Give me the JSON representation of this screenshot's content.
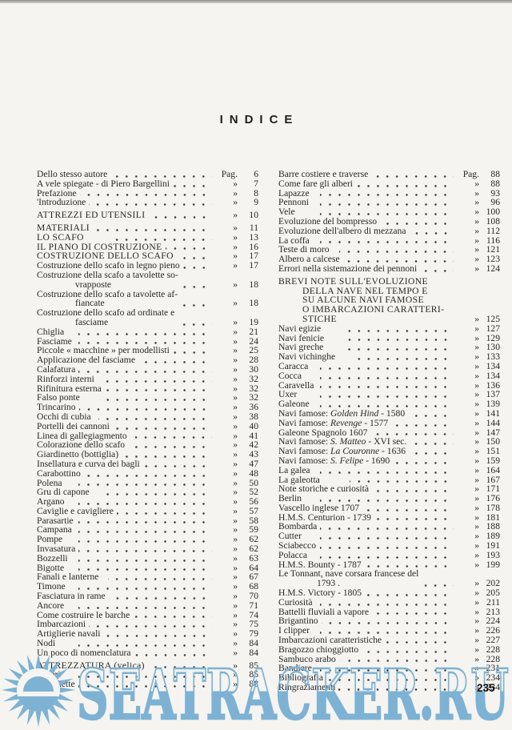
{
  "page": {
    "title": "INDICE",
    "page_number": "235",
    "watermark": {
      "text": "SEATRACKER.RU"
    },
    "colors": {
      "paper": "#f5f4f0",
      "ink": "#272727",
      "watermark_blue": "#7db2d4"
    }
  },
  "index": {
    "markers": {
      "first": "Pag.",
      "rest": "»"
    },
    "columns": [
      {
        "entries": [
          {
            "t": "Dello stesso autore",
            "p": "6"
          },
          {
            "t": "A vele spiegate - di Piero Bargellini",
            "p": "7"
          },
          {
            "t": "Prefazione",
            "p": "8"
          },
          {
            "t": "'Introduzione",
            "p": "9"
          },
          {
            "t": "ATTREZZI ED UTENSILI",
            "p": "10",
            "caps": true,
            "gap": true
          },
          {
            "t": "MATERIALI",
            "p": "11",
            "caps": true,
            "gap": true
          },
          {
            "t": "LO SCAFO",
            "p": "13",
            "caps": true
          },
          {
            "t": "IL PIANO DI COSTRUZIONE",
            "p": "16",
            "caps": true
          },
          {
            "t": "COSTRUZIONE DELLO SCAFO",
            "p": "17",
            "caps": true
          },
          {
            "t": "Costruzione dello scafo in legno pieno",
            "p": "17"
          },
          {
            "t": "Costruzione della scafo a tavolette so-\nvrapposte",
            "p": "18"
          },
          {
            "t": "Costruzione dello scafo a tavolette af-\nfiancate",
            "p": "18"
          },
          {
            "t": "Costruzione dello scafo ad ordinate e\nfasciame",
            "p": "19"
          },
          {
            "t": "Chiglia",
            "p": "21"
          },
          {
            "t": "Fasciame",
            "p": "24"
          },
          {
            "t": "Piccole « macchine » per modellisti",
            "p": "25"
          },
          {
            "t": "Applicazione del fasciame",
            "p": "28"
          },
          {
            "t": "Calafatura",
            "p": "30"
          },
          {
            "t": "Rinforzi interni",
            "p": "32"
          },
          {
            "t": "Rifinitura esterna",
            "p": "32"
          },
          {
            "t": "Falso ponte",
            "p": "32"
          },
          {
            "t": "Trincarino",
            "p": "36"
          },
          {
            "t": "Occhi di cubia",
            "p": "38"
          },
          {
            "t": "Portelli dei cannoni",
            "p": "40"
          },
          {
            "t": "Linea di gallegiagmento",
            "p": "41"
          },
          {
            "t": "Colorazione dello scafo",
            "p": "42"
          },
          {
            "t": "Giardinetto (bottiglia)",
            "p": "43"
          },
          {
            "t": "Insellatura e curva dei bagli",
            "p": "47"
          },
          {
            "t": "Carabottino",
            "p": "48"
          },
          {
            "t": "Polena",
            "p": "50"
          },
          {
            "t": "Gru di capone",
            "p": "52"
          },
          {
            "t": "Argano",
            "p": "56"
          },
          {
            "t": "Caviglie e cavigliere",
            "p": "57"
          },
          {
            "t": "Parasartie",
            "p": "58"
          },
          {
            "t": "Campana",
            "p": "59"
          },
          {
            "t": "Pompe",
            "p": "62"
          },
          {
            "t": "Invasatura",
            "p": "62"
          },
          {
            "t": "Bozzelli",
            "p": "63"
          },
          {
            "t": "Bigotte",
            "p": "64"
          },
          {
            "t": "Fanali e lanterne",
            "p": "67"
          },
          {
            "t": "Timone",
            "p": "68"
          },
          {
            "t": "Fasciatura in rame",
            "p": "70"
          },
          {
            "t": "Ancore",
            "p": "71"
          },
          {
            "t": "Come costruire le barche",
            "p": "74"
          },
          {
            "t": "Imbarcazioni",
            "p": "75"
          },
          {
            "t": "Artiglierie navali",
            "p": "79"
          },
          {
            "t": "Nodi",
            "p": "84"
          },
          {
            "t": "Un poco di nomenclatura",
            "p": "84"
          },
          {
            "t": "ATTREZZATURA (velica)",
            "p": "85",
            "caps": true,
            "gap": true
          },
          {
            "t": "Alberi",
            "p": "85"
          },
          {
            "t": "Maschette",
            "p": "88"
          }
        ]
      },
      {
        "entries": [
          {
            "t": "Barre costiere e traverse",
            "p": "88"
          },
          {
            "t": "Come fare gli alberi",
            "p": "88"
          },
          {
            "t": "Lapazze",
            "p": "93"
          },
          {
            "t": "Pennoni",
            "p": "96"
          },
          {
            "t": "Vele",
            "p": "100"
          },
          {
            "t": "Evoluzione del bompresso",
            "p": "108"
          },
          {
            "t": "Evoluzione dell'albero di mezzana",
            "p": "112"
          },
          {
            "t": "La coffa",
            "p": "116"
          },
          {
            "t": "Teste di moro",
            "p": "121"
          },
          {
            "t": "Albero a calcese",
            "p": "123"
          },
          {
            "t": "Errori nella sistemazione dei pennoni",
            "p": "124"
          },
          {
            "t": "BREVI NOTE SULL'EVOLUZIONE\nDELLA NAVE NEL TEMPO E\nSU ALCUNE NAVI FAMOSE\nO IMBARCAZIONI CARATTERI-\nSTICHE",
            "p": "125",
            "caps": true,
            "gap": true,
            "ind": 30
          },
          {
            "t": "Navi egizie",
            "p": "127"
          },
          {
            "t": "Navi fenicie",
            "p": "129"
          },
          {
            "t": "Navi greche",
            "p": "130"
          },
          {
            "t": "Navi vichinghe",
            "p": "133"
          },
          {
            "t": "Caracca",
            "p": "134"
          },
          {
            "t": "Cocca",
            "p": "134"
          },
          {
            "t": "Caravella",
            "p": "136"
          },
          {
            "t": "Uxer",
            "p": "137"
          },
          {
            "t": "Galeone",
            "p": "139"
          },
          {
            "t": "Navi famose: *Golden Hind* - 1580",
            "p": "141"
          },
          {
            "t": "Navi famose: *Revenge* - 1577",
            "p": "144"
          },
          {
            "t": "Galeone Spagnolo 1607",
            "p": "147"
          },
          {
            "t": "Navi famose: *S. Matteo* - XVI sec.",
            "p": "150"
          },
          {
            "t": "Navi famose: *La Couronne* - 1636",
            "p": "151"
          },
          {
            "t": "Navi famose: *S. Felipe* - 1690",
            "p": "159"
          },
          {
            "t": "La galea",
            "p": "164"
          },
          {
            "t": "La galeotta",
            "p": "167"
          },
          {
            "t": "Note storiche e curiosità",
            "p": "171"
          },
          {
            "t": "Berlin",
            "p": "176"
          },
          {
            "t": "Vascello inglese 1707",
            "p": "178"
          },
          {
            "t": "H.M.S. Centurion - 1739",
            "p": "181"
          },
          {
            "t": "Bombarda",
            "p": "188"
          },
          {
            "t": "Cutter",
            "p": "189"
          },
          {
            "t": "Sciabecco",
            "p": "191"
          },
          {
            "t": "Polacca",
            "p": "193"
          },
          {
            "t": "H.M.S. Bounty - 1787",
            "p": "199"
          },
          {
            "t": "Le Tonnant, nave corsara francese del\n1793 .",
            "p": "202"
          },
          {
            "t": "H.M.S. Victory - 1805",
            "p": "205"
          },
          {
            "t": "Curiosità",
            "p": "211"
          },
          {
            "t": "Battelli fluviali a vapore",
            "p": "213"
          },
          {
            "t": "Brigantino",
            "p": "224"
          },
          {
            "t": "I clipper",
            "p": "226"
          },
          {
            "t": "Imbarcazioni caratteristiche",
            "p": "227"
          },
          {
            "t": "Bragozzo chioggiotto",
            "p": "228"
          },
          {
            "t": "Sambuco arabo",
            "p": "228"
          },
          {
            "t": "Bandiere",
            "p": "231"
          },
          {
            "t": "Bibliografia",
            "p": "234"
          },
          {
            "t": "Ringraziamenti",
            "p": "234"
          }
        ]
      }
    ]
  }
}
